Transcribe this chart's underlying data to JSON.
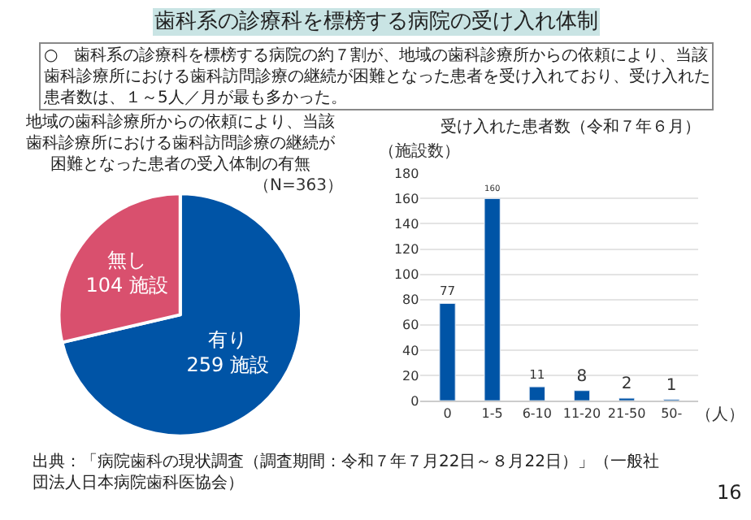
{
  "chart_data": [
    {
      "type": "pie",
      "title": "地域の歯科診療所からの依頼により、当該歯科診療所における歯科訪問診療の継続が困難となった患者の受入体制の有無",
      "subtitle": "（N=363）",
      "categories": [
        "有り",
        "無し"
      ],
      "values": [
        259,
        104
      ],
      "colors": [
        "#0054a6",
        "#d9506e"
      ],
      "value_labels": [
        "259 施設",
        "104 施設"
      ],
      "annotations": [
        "歯科系の診療科を標榜する病院の受け入れ体制",
        "○　歯科系の診療科を標榜する病院の約７割が、地域の歯科診療所からの依頼により、当該歯科診療所における歯科訪問診療の継続が困難となった患者を受け入れており、受け入れた患者数は、１～5人／月が最も多かった。",
        "出典：「病院歯科の現状調査（調査期間：令和７年７月22日～８月22日）」（一般社団法人日本病院歯科医協会）",
        "16"
      ]
    },
    {
      "type": "bar",
      "title": "受け入れた患者数（令和７年６月）",
      "ylabel": "（施設数）",
      "xlabel": "（人）",
      "categories": [
        "0",
        "1-5",
        "6-10",
        "11-20",
        "21-50",
        "50-"
      ],
      "values": [
        77,
        160,
        11,
        8,
        2,
        1
      ],
      "color": "#0054a6",
      "ylim": [
        0,
        180
      ],
      "yticks": [
        0,
        20,
        40,
        60,
        80,
        100,
        120,
        140,
        160,
        180
      ],
      "grid": "y",
      "data_labels": true
    }
  ]
}
